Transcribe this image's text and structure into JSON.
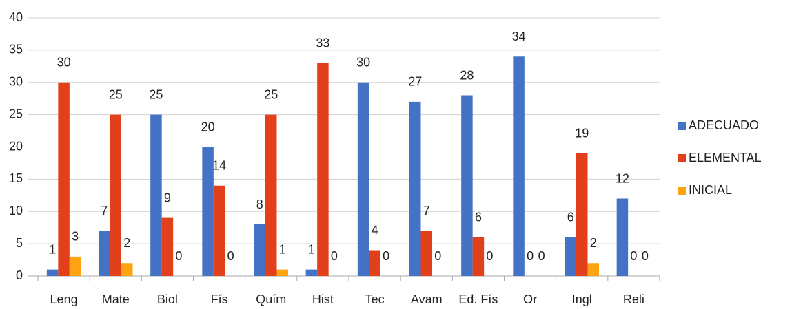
{
  "chart_data": {
    "type": "bar",
    "categories": [
      "Leng",
      "Mate",
      "Biol",
      "Fís",
      "Quím",
      "Hist",
      "Tec",
      "Avam",
      "Ed. Fís",
      "Or",
      "Ingl",
      "Reli"
    ],
    "series": [
      {
        "name": "ADECUADO",
        "color": "#4472c4",
        "values": [
          1,
          7,
          25,
          20,
          8,
          1,
          30,
          27,
          28,
          34,
          6,
          12
        ]
      },
      {
        "name": "ELEMENTAL",
        "color": "#e2401b",
        "values": [
          30,
          25,
          9,
          14,
          25,
          33,
          4,
          7,
          6,
          0,
          19,
          0
        ]
      },
      {
        "name": "INICIAL",
        "color": "#ffa411",
        "values": [
          3,
          2,
          0,
          0,
          1,
          0,
          0,
          0,
          0,
          0,
          2,
          0
        ]
      }
    ],
    "ylim": [
      0,
      40
    ],
    "yticks": [
      0,
      5,
      10,
      15,
      20,
      25,
      30,
      35,
      40
    ],
    "grid": true,
    "legend": "right",
    "data_labels": true
  }
}
